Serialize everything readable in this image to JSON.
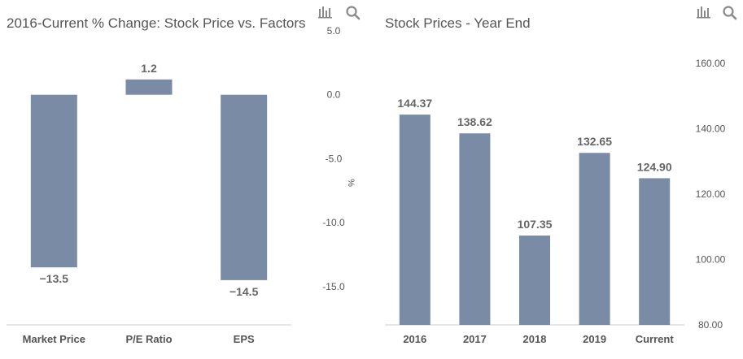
{
  "icons": {
    "chart": "bar-chart-icon",
    "search": "magnifier-icon"
  },
  "colors": {
    "bar": "#7a8ba6",
    "text": "#555555",
    "label": "#666666",
    "axis": "#cccccc"
  },
  "chart_data": [
    {
      "type": "bar",
      "title": "2016-Current % Change: Stock Price vs. Factors",
      "categories": [
        "Market Price",
        "P/E Ratio",
        "EPS"
      ],
      "values": [
        -13.5,
        1.2,
        -14.5
      ],
      "value_labels": [
        "−13.5",
        "1.2",
        "−14.5"
      ],
      "ylabel": "%",
      "ylim": [
        -18,
        5
      ],
      "yticks": [
        5,
        0,
        -5,
        -10,
        -15
      ],
      "ytick_labels": [
        "5.0",
        "0.0",
        "-5.0",
        "-10.0",
        "-15.0"
      ],
      "yaxis_side": "right"
    },
    {
      "type": "bar",
      "title": "Stock Prices - Year End",
      "categories": [
        "2016",
        "2017",
        "2018",
        "2019",
        "Current"
      ],
      "values": [
        144.37,
        138.62,
        107.35,
        132.65,
        124.9
      ],
      "value_labels": [
        "144.37",
        "138.62",
        "107.35",
        "132.65",
        "124.90"
      ],
      "ylabel": "",
      "ylim": [
        80,
        170
      ],
      "yticks": [
        160,
        140,
        120,
        100,
        80
      ],
      "ytick_labels": [
        "160.00",
        "140.00",
        "120.00",
        "100.00",
        "80.00"
      ],
      "yaxis_side": "right"
    }
  ]
}
